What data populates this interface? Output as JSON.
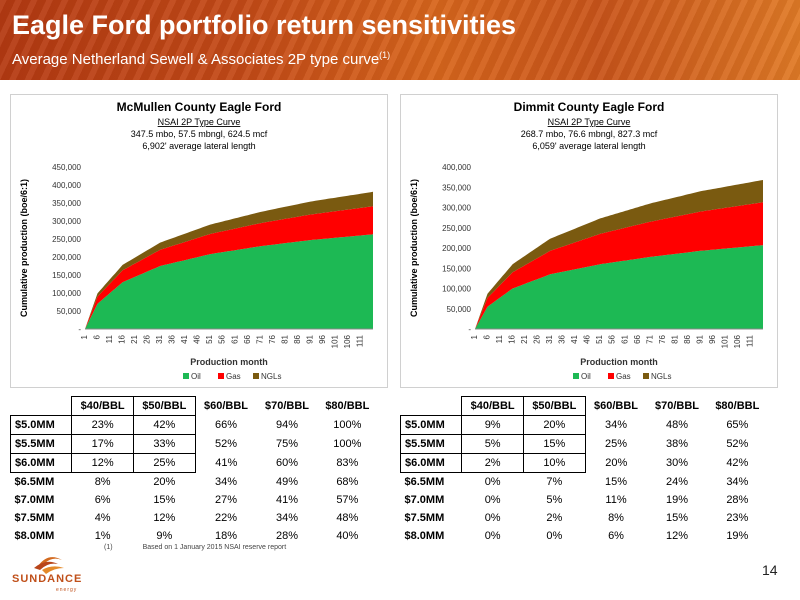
{
  "header": {
    "title": "Eagle Ford portfolio return sensitivities",
    "subtitle": "Average Netherland Sewell & Associates 2P type curve",
    "subtitle_sup": "(1)"
  },
  "colors": {
    "oil": "#1db954",
    "gas": "#ff0000",
    "ngls": "#7a5a10"
  },
  "chart_data": [
    {
      "type": "area",
      "stacked": true,
      "title": "McMullen County Eagle Ford",
      "subtitle_lines": [
        "NSAI 2P Type Curve",
        "347.5 mbo, 57.5 mbngl, 624.5 mcf",
        "6,902' average lateral length"
      ],
      "xlabel": "Production month",
      "ylabel": "Cumulative production (boe/6:1)",
      "x_tick_labels": [
        "1",
        "6",
        "11",
        "16",
        "21",
        "26",
        "31",
        "36",
        "41",
        "46",
        "51",
        "56",
        "61",
        "66",
        "71",
        "76",
        "81",
        "86",
        "91",
        "96",
        "101",
        "106",
        "111"
      ],
      "y_tick_labels": [
        "-",
        "50,000",
        "100,000",
        "150,000",
        "200,000",
        "250,000",
        "300,000",
        "350,000",
        "400,000",
        "450,000"
      ],
      "ylim": [
        0,
        450000
      ],
      "xlim": [
        1,
        116
      ],
      "legend": [
        "Oil",
        "Gas",
        "NGLs"
      ],
      "legend_position": "bottom",
      "x": [
        1,
        6,
        16,
        31,
        51,
        71,
        91,
        116
      ],
      "series": [
        {
          "name": "Oil",
          "values": [
            0,
            70000,
            130000,
            175000,
            208000,
            230000,
            247000,
            263000
          ]
        },
        {
          "name": "Gas",
          "values": [
            0,
            20000,
            33000,
            45000,
            56000,
            64000,
            71000,
            78000
          ]
        },
        {
          "name": "NGLs",
          "values": [
            0,
            9000,
            15000,
            20000,
            26000,
            31000,
            36000,
            40000
          ]
        }
      ]
    },
    {
      "type": "area",
      "stacked": true,
      "title": "Dimmit County Eagle Ford",
      "subtitle_lines": [
        "NSAI 2P Type Curve",
        "268.7 mbo, 76.6 mbngl, 827.3 mcf",
        "6,059' average lateral length"
      ],
      "xlabel": "Production month",
      "ylabel": "Cumulative production (boe/6:1)",
      "x_tick_labels": [
        "1",
        "6",
        "11",
        "16",
        "21",
        "26",
        "31",
        "36",
        "41",
        "46",
        "51",
        "56",
        "61",
        "66",
        "71",
        "76",
        "81",
        "86",
        "91",
        "96",
        "101",
        "106",
        "111"
      ],
      "y_tick_labels": [
        "-",
        "50,000",
        "100,000",
        "150,000",
        "200,000",
        "250,000",
        "300,000",
        "350,000",
        "400,000"
      ],
      "ylim": [
        0,
        400000
      ],
      "xlim": [
        1,
        116
      ],
      "legend": [
        "Oil",
        "Gas",
        "NGLs"
      ],
      "legend_position": "bottom",
      "x": [
        1,
        6,
        16,
        31,
        51,
        71,
        91,
        116
      ],
      "series": [
        {
          "name": "Oil",
          "values": [
            0,
            55000,
            100000,
            135000,
            160000,
            178000,
            193000,
            207000
          ]
        },
        {
          "name": "Gas",
          "values": [
            0,
            22000,
            40000,
            58000,
            75000,
            87000,
            97000,
            106000
          ]
        },
        {
          "name": "NGLs",
          "values": [
            0,
            10000,
            20000,
            30000,
            38000,
            45000,
            50000,
            55000
          ]
        }
      ]
    }
  ],
  "tables": [
    {
      "headers": [
        "",
        "$40/BBL",
        "$50/BBL",
        "$60/BBL",
        "$70/BBL",
        "$80/BBL"
      ],
      "rows": [
        [
          "$5.0MM",
          "23%",
          "42%",
          "66%",
          "94%",
          "100%"
        ],
        [
          "$5.5MM",
          "17%",
          "33%",
          "52%",
          "75%",
          "100%"
        ],
        [
          "$6.0MM",
          "12%",
          "25%",
          "41%",
          "60%",
          "83%"
        ],
        [
          "$6.5MM",
          "8%",
          "20%",
          "34%",
          "49%",
          "68%"
        ],
        [
          "$7.0MM",
          "6%",
          "15%",
          "27%",
          "41%",
          "57%"
        ],
        [
          "$7.5MM",
          "4%",
          "12%",
          "22%",
          "34%",
          "48%"
        ],
        [
          "$8.0MM",
          "1%",
          "9%",
          "18%",
          "28%",
          "40%"
        ]
      ]
    },
    {
      "headers": [
        "",
        "$40/BBL",
        "$50/BBL",
        "$60/BBL",
        "$70/BBL",
        "$80/BBL"
      ],
      "rows": [
        [
          "$5.0MM",
          "9%",
          "20%",
          "34%",
          "48%",
          "65%"
        ],
        [
          "$5.5MM",
          "5%",
          "15%",
          "25%",
          "38%",
          "52%"
        ],
        [
          "$6.0MM",
          "2%",
          "10%",
          "20%",
          "30%",
          "42%"
        ],
        [
          "$6.5MM",
          "0%",
          "7%",
          "15%",
          "24%",
          "34%"
        ],
        [
          "$7.0MM",
          "0%",
          "5%",
          "11%",
          "19%",
          "28%"
        ],
        [
          "$7.5MM",
          "0%",
          "2%",
          "8%",
          "15%",
          "23%"
        ],
        [
          "$8.0MM",
          "0%",
          "0%",
          "6%",
          "12%",
          "19%"
        ]
      ]
    }
  ],
  "footnote": {
    "number": "(1)",
    "text": "Based on 1 January 2015 NSAI reserve report"
  },
  "page_number": "14",
  "logo": {
    "name": "SUNDANCE",
    "tagline": "energy"
  }
}
